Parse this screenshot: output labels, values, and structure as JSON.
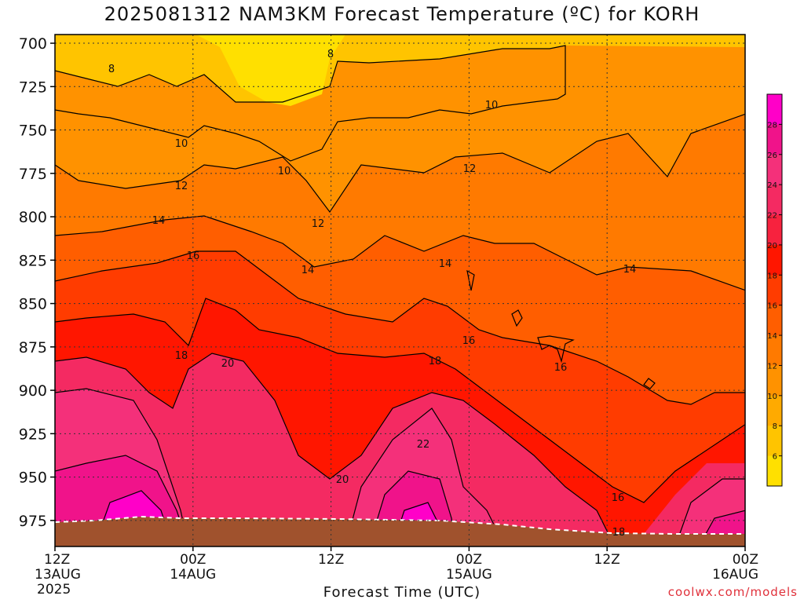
{
  "chart_data": {
    "type": "heatmap",
    "title": "2025081312 NAM3KM Forecast Temperature (ºC) for KORH",
    "xlabel": "Forecast Time (UTC)",
    "credit": "coolwx.com/models",
    "y_axis": {
      "ticks": [
        "700",
        "725",
        "750",
        "775",
        "800",
        "825",
        "850",
        "875",
        "900",
        "925",
        "950",
        "975"
      ],
      "values": [
        700,
        725,
        750,
        775,
        800,
        825,
        850,
        875,
        900,
        925,
        950,
        975
      ],
      "range": [
        695,
        990
      ]
    },
    "x_axis": {
      "ticks": [
        {
          "hour": "12Z",
          "date": "13AUG",
          "year": "2025"
        },
        {
          "hour": "00Z",
          "date": "14AUG"
        },
        {
          "hour": "12Z",
          "date": ""
        },
        {
          "hour": "00Z",
          "date": "15AUG"
        },
        {
          "hour": "12Z",
          "date": ""
        },
        {
          "hour": "00Z",
          "date": "16AUG"
        }
      ]
    },
    "colorbar": {
      "labels": [
        "6",
        "8",
        "10",
        "12",
        "14",
        "16",
        "18",
        "20",
        "22",
        "24",
        "26",
        "28"
      ],
      "colors": [
        "#ffe000",
        "#ffc400",
        "#ffaa00",
        "#ff9200",
        "#ff7a00",
        "#ff5e00",
        "#ff3c00",
        "#ff1600",
        "#f7223e",
        "#f42a62",
        "#f4307a",
        "#f0138a",
        "#ff00c8"
      ]
    },
    "contour_labels": [
      "8",
      "8",
      "10",
      "10",
      "10",
      "12",
      "12",
      "12",
      "14",
      "14",
      "14",
      "14",
      "16",
      "16",
      "16",
      "16",
      "18",
      "18",
      "18",
      "20",
      "20",
      "22"
    ],
    "colors": {
      "terrain": "#a0522d",
      "frame": "#000000"
    }
  }
}
